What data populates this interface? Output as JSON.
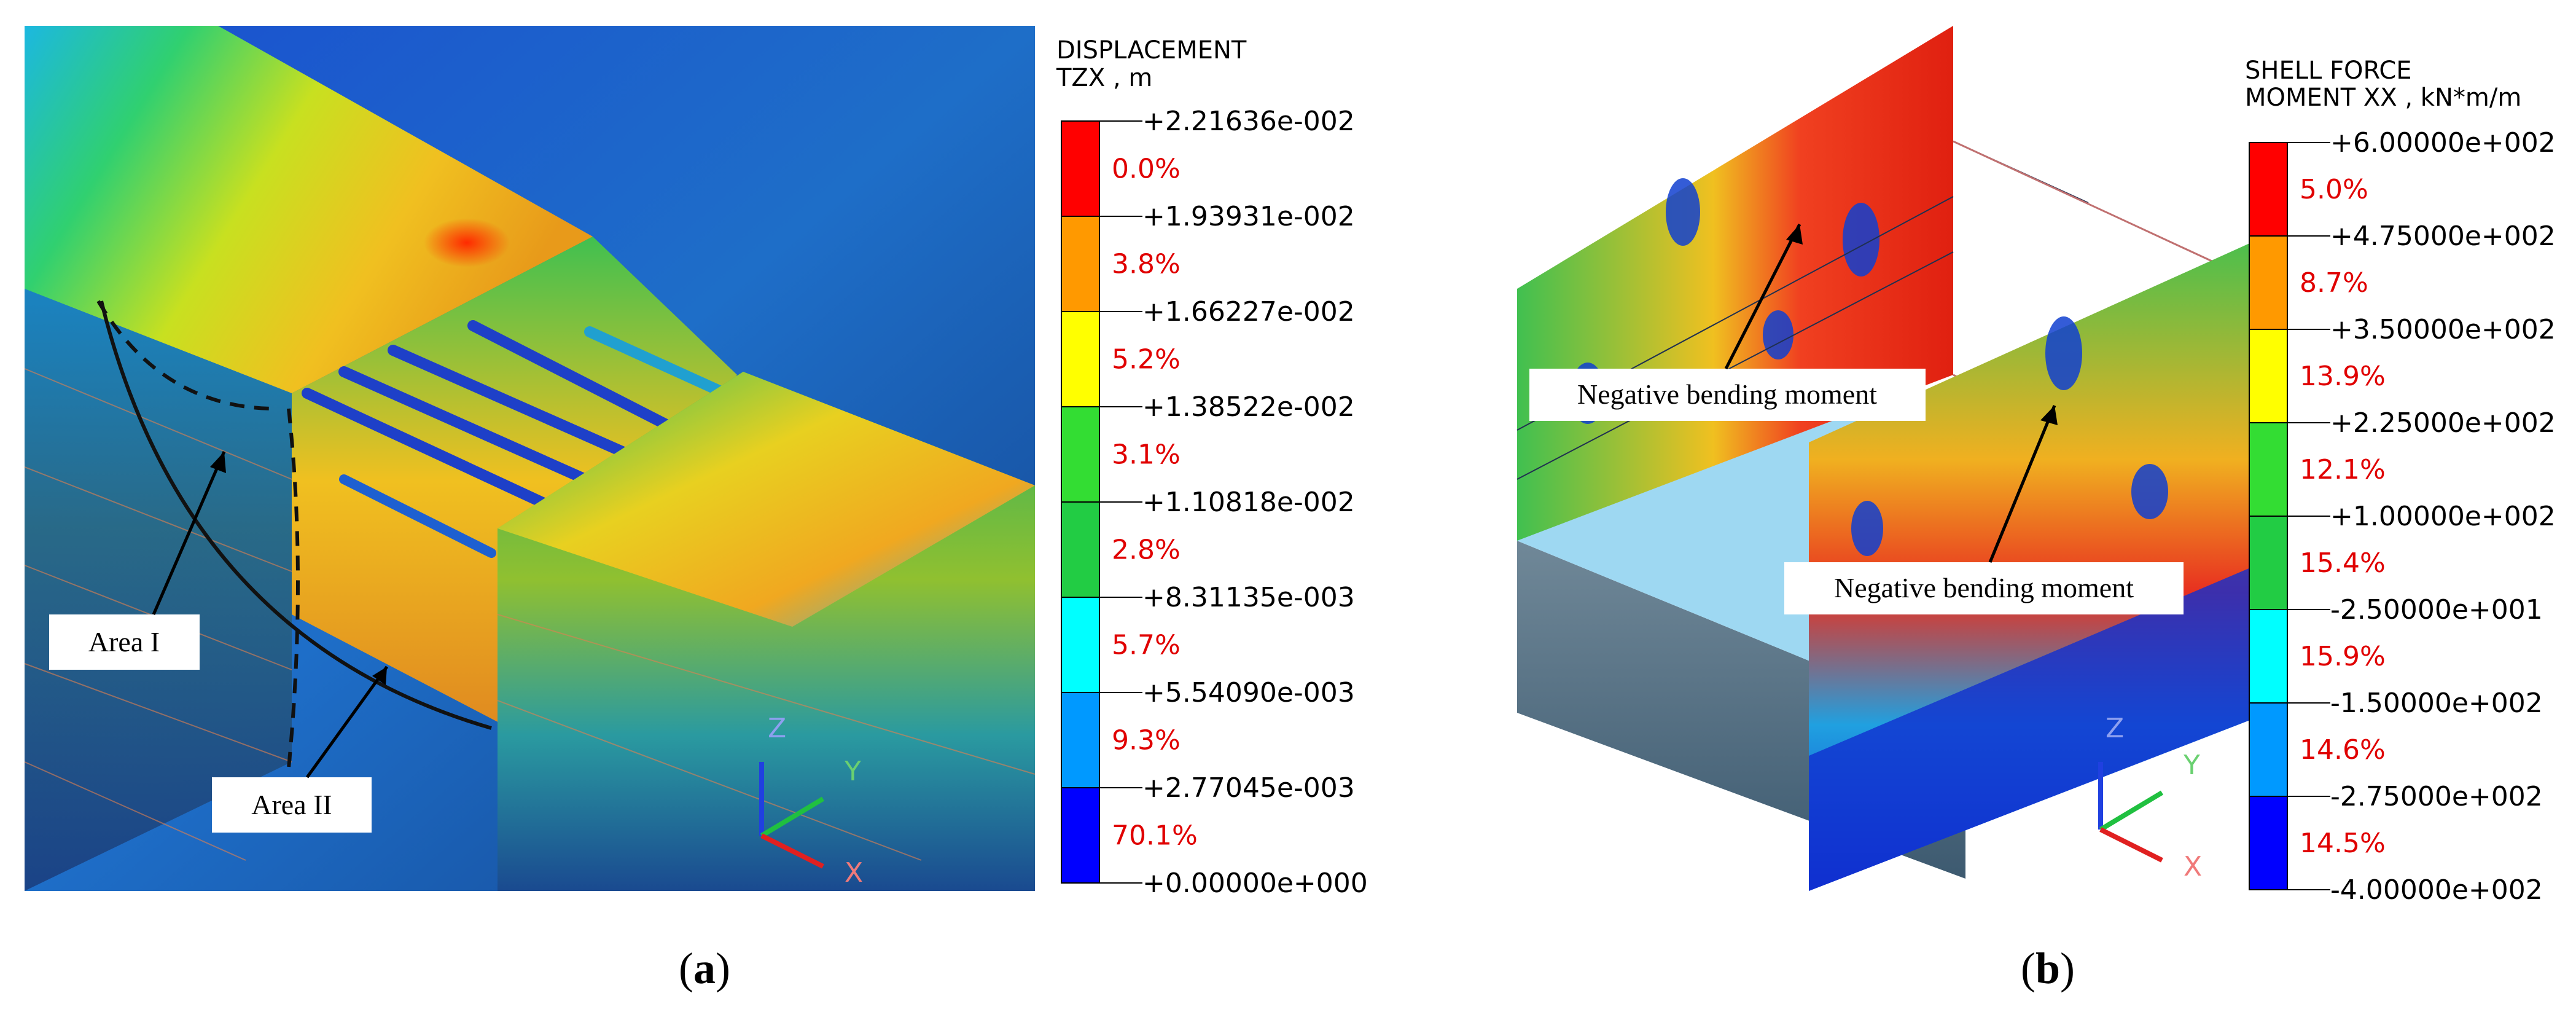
{
  "panel_a": {
    "caption_open": "(",
    "caption_letter": "a",
    "caption_close": ")",
    "legend": {
      "title_line1": "DISPLACEMENT",
      "title_line2": "TZX , m",
      "values": [
        "+2.21636e-002",
        "+1.93931e-002",
        "+1.66227e-002",
        "+1.38522e-002",
        "+1.10818e-002",
        "+8.31135e-003",
        "+5.54090e-003",
        "+2.77045e-003",
        "+0.00000e+000"
      ],
      "percents": [
        "0.0%",
        "3.8%",
        "5.2%",
        "3.1%",
        "2.8%",
        "5.7%",
        "9.3%",
        "70.1%"
      ],
      "colors": [
        "#ff0000",
        "#ff9900",
        "#ffff00",
        "#33dd33",
        "#22cc44",
        "#00ffff",
        "#0099ff",
        "#0000ff"
      ]
    },
    "callouts": {
      "area1": "Area I",
      "area2": "Area II"
    },
    "axes": {
      "z": "Z",
      "y": "Y",
      "x": "X"
    }
  },
  "panel_b": {
    "caption_open": "(",
    "caption_letter": "b",
    "caption_close": ")",
    "legend": {
      "title_line1": "SHELL FORCE",
      "title_line2": "MOMENT XX , kN*m/m",
      "values": [
        "+6.00000e+002",
        "+4.75000e+002",
        "+3.50000e+002",
        "+2.25000e+002",
        "+1.00000e+002",
        "-2.50000e+001",
        "-1.50000e+002",
        "-2.75000e+002",
        "-4.00000e+002"
      ],
      "percents": [
        "5.0%",
        "8.7%",
        "13.9%",
        "12.1%",
        "15.4%",
        "15.9%",
        "14.6%",
        "14.5%"
      ],
      "colors": [
        "#ff0000",
        "#ff9900",
        "#ffff00",
        "#33dd33",
        "#22cc44",
        "#00ffff",
        "#0099ff",
        "#0000ff"
      ]
    },
    "callouts": {
      "neg1": "Negative bending moment",
      "neg2": "Negative bending moment"
    },
    "axes": {
      "z": "Z",
      "y": "Y",
      "x": "X"
    }
  }
}
